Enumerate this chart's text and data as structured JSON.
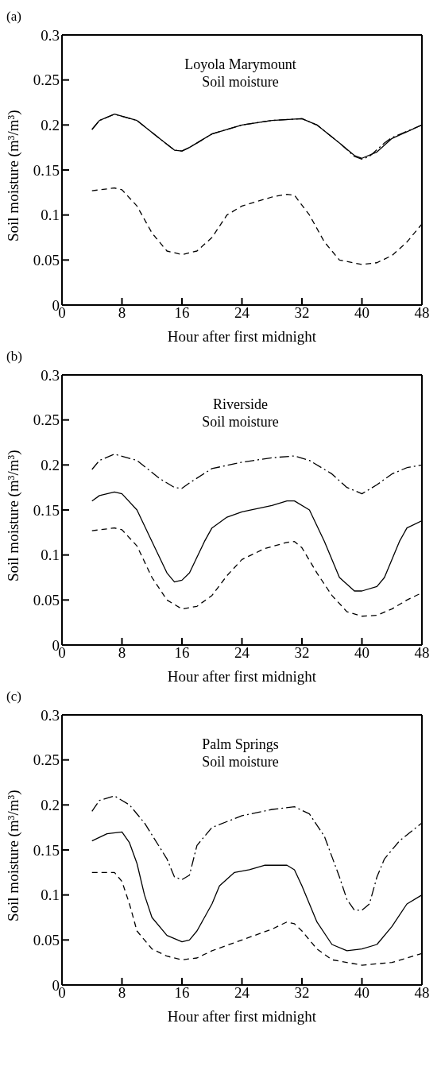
{
  "chart_data": [
    {
      "type": "line",
      "title": "(a)",
      "annotations": [
        "Loyola Marymount",
        "Soil moisture"
      ],
      "xlabel": "Hour after first midnight",
      "ylabel": "Soil moisture (m³/m³)",
      "xlim": [
        0,
        48
      ],
      "xticks": [
        0,
        8,
        16,
        24,
        32,
        40,
        48
      ],
      "ylim": [
        0,
        0.3
      ],
      "yticks": [
        0,
        0.05,
        0.1,
        0.15,
        0.2,
        0.25,
        0.3
      ],
      "marker": "none",
      "series": [
        {
          "color": "#000000",
          "line_style": "solid",
          "x": [
            4,
            5,
            7,
            10,
            13,
            15,
            16,
            17,
            20,
            24,
            28,
            32,
            34,
            37,
            39,
            40,
            42,
            44,
            48
          ],
          "values": [
            0.195,
            0.205,
            0.212,
            0.205,
            0.185,
            0.172,
            0.171,
            0.175,
            0.19,
            0.2,
            0.205,
            0.207,
            0.2,
            0.18,
            0.166,
            0.163,
            0.17,
            0.185,
            0.2
          ]
        },
        {
          "color": "#000000",
          "line_style": "dashdot",
          "x": [
            4,
            5,
            7,
            10,
            13,
            15,
            16,
            17,
            20,
            24,
            28,
            32,
            34,
            37,
            39,
            40,
            41,
            43,
            44,
            48
          ],
          "values": [
            0.195,
            0.205,
            0.212,
            0.205,
            0.185,
            0.172,
            0.171,
            0.175,
            0.19,
            0.2,
            0.205,
            0.207,
            0.2,
            0.18,
            0.165,
            0.162,
            0.165,
            0.18,
            0.186,
            0.2
          ]
        },
        {
          "color": "#000000",
          "line_style": "dashed",
          "x": [
            4,
            7,
            8,
            10,
            12,
            14,
            16,
            18,
            20,
            22,
            24,
            28,
            30,
            31,
            33,
            35,
            37,
            40,
            42,
            44,
            46,
            48
          ],
          "values": [
            0.127,
            0.13,
            0.128,
            0.11,
            0.08,
            0.06,
            0.056,
            0.06,
            0.075,
            0.1,
            0.11,
            0.12,
            0.123,
            0.122,
            0.1,
            0.07,
            0.05,
            0.045,
            0.047,
            0.055,
            0.07,
            0.09
          ]
        }
      ]
    },
    {
      "type": "line",
      "title": "(b)",
      "annotations": [
        "Riverside",
        "Soil moisture"
      ],
      "xlabel": "Hour after first midnight",
      "ylabel": "Soil moisture (m³/m³)",
      "xlim": [
        0,
        48
      ],
      "xticks": [
        0,
        8,
        16,
        24,
        32,
        40,
        48
      ],
      "ylim": [
        0,
        0.3
      ],
      "yticks": [
        0,
        0.05,
        0.1,
        0.15,
        0.2,
        0.25,
        0.3
      ],
      "marker": "none",
      "series": [
        {
          "color": "#000000",
          "line_style": "dashdot",
          "x": [
            4,
            5,
            7,
            10,
            13,
            15,
            16,
            17,
            20,
            24,
            28,
            31,
            33,
            36,
            38,
            40,
            42,
            44,
            46,
            48
          ],
          "values": [
            0.195,
            0.205,
            0.212,
            0.205,
            0.185,
            0.175,
            0.174,
            0.18,
            0.196,
            0.203,
            0.208,
            0.21,
            0.205,
            0.19,
            0.175,
            0.168,
            0.178,
            0.19,
            0.197,
            0.2
          ]
        },
        {
          "color": "#000000",
          "line_style": "solid",
          "x": [
            4,
            5,
            7,
            8,
            10,
            12,
            14,
            15,
            16,
            17,
            19,
            20,
            22,
            24,
            28,
            30,
            31,
            33,
            35,
            37,
            39,
            40,
            42,
            43,
            45,
            46,
            48
          ],
          "values": [
            0.16,
            0.166,
            0.17,
            0.168,
            0.15,
            0.115,
            0.08,
            0.07,
            0.072,
            0.08,
            0.115,
            0.13,
            0.142,
            0.148,
            0.155,
            0.16,
            0.16,
            0.15,
            0.115,
            0.075,
            0.06,
            0.06,
            0.065,
            0.075,
            0.115,
            0.13,
            0.138
          ]
        },
        {
          "color": "#000000",
          "line_style": "dashed",
          "x": [
            4,
            7,
            8,
            10,
            12,
            14,
            16,
            18,
            20,
            22,
            24,
            27,
            30,
            31,
            32,
            34,
            36,
            38,
            40,
            42,
            44,
            46,
            48
          ],
          "values": [
            0.127,
            0.13,
            0.128,
            0.11,
            0.075,
            0.05,
            0.04,
            0.043,
            0.055,
            0.077,
            0.095,
            0.107,
            0.114,
            0.115,
            0.108,
            0.08,
            0.055,
            0.037,
            0.032,
            0.033,
            0.04,
            0.05,
            0.058
          ]
        }
      ]
    },
    {
      "type": "line",
      "title": "(c)",
      "annotations": [
        "Palm Springs",
        "Soil moisture"
      ],
      "xlabel": "Hour after first midnight",
      "ylabel": "Soil moisture (m³/m³)",
      "xlim": [
        0,
        48
      ],
      "xticks": [
        0,
        8,
        16,
        24,
        32,
        40,
        48
      ],
      "ylim": [
        0,
        0.3
      ],
      "yticks": [
        0,
        0.05,
        0.1,
        0.15,
        0.2,
        0.25,
        0.3
      ],
      "marker": "none",
      "series": [
        {
          "color": "#000000",
          "line_style": "dashdot",
          "x": [
            4,
            5,
            7,
            9,
            11,
            14,
            15,
            16,
            17,
            18,
            20,
            24,
            28,
            31,
            33,
            35,
            37,
            38,
            39,
            40,
            41,
            42,
            43,
            45,
            48
          ],
          "values": [
            0.193,
            0.205,
            0.21,
            0.2,
            0.18,
            0.14,
            0.12,
            0.117,
            0.122,
            0.155,
            0.175,
            0.188,
            0.195,
            0.198,
            0.19,
            0.165,
            0.12,
            0.095,
            0.083,
            0.083,
            0.09,
            0.12,
            0.14,
            0.16,
            0.18
          ]
        },
        {
          "color": "#000000",
          "line_style": "solid",
          "x": [
            4,
            6,
            8,
            9,
            10,
            11,
            12,
            14,
            16,
            17,
            18,
            20,
            21,
            23,
            25,
            27,
            30,
            31,
            32,
            34,
            36,
            38,
            40,
            42,
            44,
            46,
            48
          ],
          "values": [
            0.16,
            0.168,
            0.17,
            0.158,
            0.135,
            0.1,
            0.075,
            0.055,
            0.048,
            0.05,
            0.06,
            0.09,
            0.11,
            0.125,
            0.128,
            0.133,
            0.133,
            0.128,
            0.11,
            0.07,
            0.045,
            0.038,
            0.04,
            0.045,
            0.065,
            0.09,
            0.1
          ]
        },
        {
          "color": "#000000",
          "line_style": "dashed",
          "x": [
            4,
            7,
            8,
            9,
            10,
            12,
            14,
            16,
            18,
            20,
            24,
            28,
            30,
            31,
            32,
            34,
            36,
            40,
            44,
            48
          ],
          "values": [
            0.125,
            0.125,
            0.115,
            0.09,
            0.06,
            0.04,
            0.032,
            0.028,
            0.03,
            0.038,
            0.05,
            0.062,
            0.07,
            0.068,
            0.06,
            0.04,
            0.028,
            0.022,
            0.025,
            0.035
          ]
        }
      ]
    }
  ]
}
